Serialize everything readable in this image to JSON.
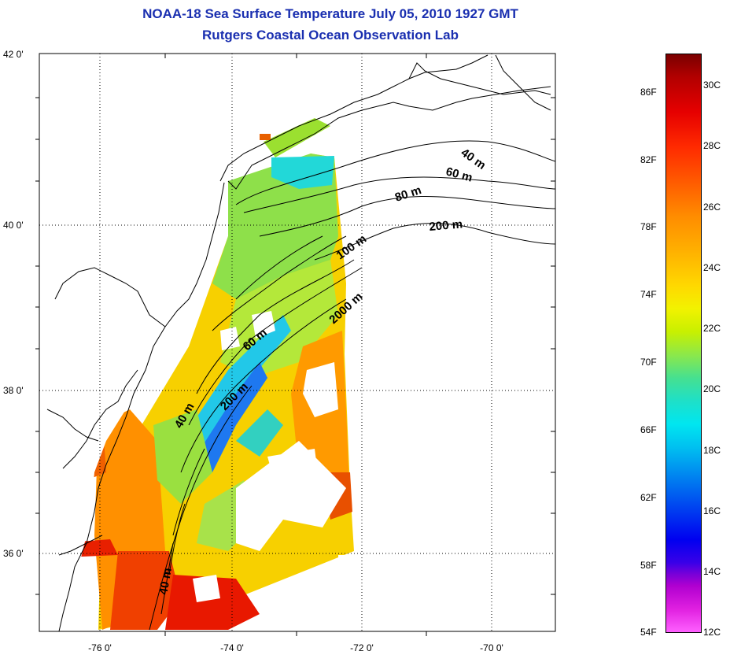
{
  "title_line1": "NOAA-18 Sea Surface Temperature July 05, 2010 1927 GMT",
  "title_line2": "Rutgers Coastal Ocean Observation Lab",
  "lat_labels": [
    "42 0'",
    "40 0'",
    "38 0'",
    "36 0'"
  ],
  "lon_labels": [
    "-76 0'",
    "-74 0'",
    "-72 0'",
    "-70 0'"
  ],
  "colorbar": {
    "fahrenheit": [
      "86F",
      "82F",
      "78F",
      "74F",
      "70F",
      "66F",
      "62F",
      "58F",
      "54F"
    ],
    "celsius": [
      "30C",
      "28C",
      "26C",
      "24C",
      "22C",
      "20C",
      "18C",
      "16C",
      "14C",
      "12C"
    ]
  },
  "contour_labels": {
    "c40a": "40 m",
    "c60a": "60 m",
    "c80": "80 m",
    "c200a": "200 m",
    "c100": "100 m",
    "c2000": "2000 m",
    "c60b": "60 m",
    "c200b": "200 m",
    "c40b": "40 m",
    "c40c": "40 m"
  },
  "colors": {
    "title": "#1a2fb0",
    "land": "#ffffff",
    "coast": "#000000"
  }
}
